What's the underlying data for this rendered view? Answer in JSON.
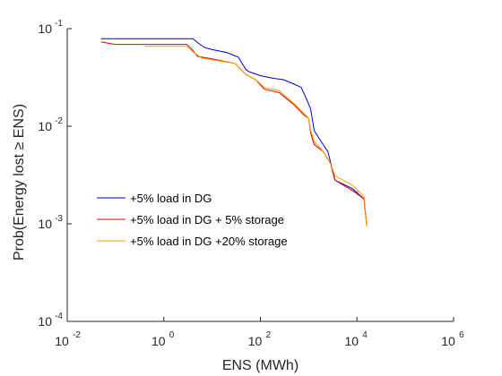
{
  "chart_data": {
    "type": "line",
    "title": "",
    "xlabel": "ENS (MWh)",
    "ylabel": "Prob(Energy lost ≥ ENS)",
    "xscale": "log",
    "yscale": "log",
    "xlim": [
      0.01,
      1000000
    ],
    "ylim": [
      0.0001,
      0.1
    ],
    "x_ticks": [
      {
        "base": "10",
        "exp": "-2",
        "value": 0.01
      },
      {
        "base": "10",
        "exp": "0",
        "value": 1
      },
      {
        "base": "10",
        "exp": "2",
        "value": 100
      },
      {
        "base": "10",
        "exp": "4",
        "value": 10000
      },
      {
        "base": "10",
        "exp": "6",
        "value": 1000000
      }
    ],
    "y_ticks": [
      {
        "base": "10",
        "exp": "-1",
        "value": 0.1
      },
      {
        "base": "10",
        "exp": "-2",
        "value": 0.01
      },
      {
        "base": "10",
        "exp": "-3",
        "value": 0.001
      },
      {
        "base": "10",
        "exp": "-4",
        "value": 0.0001
      }
    ],
    "grid": false,
    "legend_position": "lower-left",
    "series": [
      {
        "name": "+5% load in DG",
        "color": "#0000cc",
        "points": [
          [
            0.05,
            0.079
          ],
          [
            4,
            0.079
          ],
          [
            5,
            0.072
          ],
          [
            7,
            0.064
          ],
          [
            10,
            0.061
          ],
          [
            20,
            0.057
          ],
          [
            35,
            0.051
          ],
          [
            50,
            0.038
          ],
          [
            60,
            0.036
          ],
          [
            100,
            0.033
          ],
          [
            180,
            0.031
          ],
          [
            300,
            0.03
          ],
          [
            500,
            0.027
          ],
          [
            700,
            0.025
          ],
          [
            900,
            0.019
          ],
          [
            1100,
            0.015
          ],
          [
            1300,
            0.009
          ],
          [
            1800,
            0.007
          ],
          [
            2500,
            0.0055
          ],
          [
            3500,
            0.0028
          ],
          [
            8000,
            0.0023
          ],
          [
            14000,
            0.0018
          ],
          [
            16000,
            0.00095
          ]
        ]
      },
      {
        "name": "+5% load in DG + 5% storage",
        "color": "#dd0000",
        "points": [
          [
            0.05,
            0.073
          ],
          [
            0.1,
            0.069
          ],
          [
            3,
            0.069
          ],
          [
            4,
            0.06
          ],
          [
            5,
            0.052
          ],
          [
            10,
            0.049
          ],
          [
            30,
            0.044
          ],
          [
            50,
            0.034
          ],
          [
            80,
            0.03
          ],
          [
            120,
            0.024
          ],
          [
            250,
            0.022
          ],
          [
            500,
            0.0165
          ],
          [
            800,
            0.013
          ],
          [
            1000,
            0.012
          ],
          [
            1100,
            0.0085
          ],
          [
            1300,
            0.0065
          ],
          [
            2000,
            0.0055
          ],
          [
            2800,
            0.0042
          ],
          [
            3500,
            0.0028
          ],
          [
            8000,
            0.0022
          ],
          [
            14000,
            0.0018
          ],
          [
            16000,
            0.00095
          ]
        ]
      },
      {
        "name": "+5% load in DG +20% storage",
        "color": "#ff9900",
        "points": [
          [
            0.4,
            0.066
          ],
          [
            3,
            0.066
          ],
          [
            4,
            0.058
          ],
          [
            6,
            0.05
          ],
          [
            10,
            0.048
          ],
          [
            30,
            0.044
          ],
          [
            50,
            0.034
          ],
          [
            80,
            0.03
          ],
          [
            120,
            0.025
          ],
          [
            250,
            0.023
          ],
          [
            500,
            0.017
          ],
          [
            800,
            0.0135
          ],
          [
            1000,
            0.012
          ],
          [
            1100,
            0.009
          ],
          [
            1300,
            0.007
          ],
          [
            2000,
            0.0055
          ],
          [
            2800,
            0.0042
          ],
          [
            3500,
            0.0031
          ],
          [
            8000,
            0.0025
          ],
          [
            14000,
            0.0019
          ],
          [
            16000,
            0.00095
          ]
        ]
      }
    ]
  }
}
